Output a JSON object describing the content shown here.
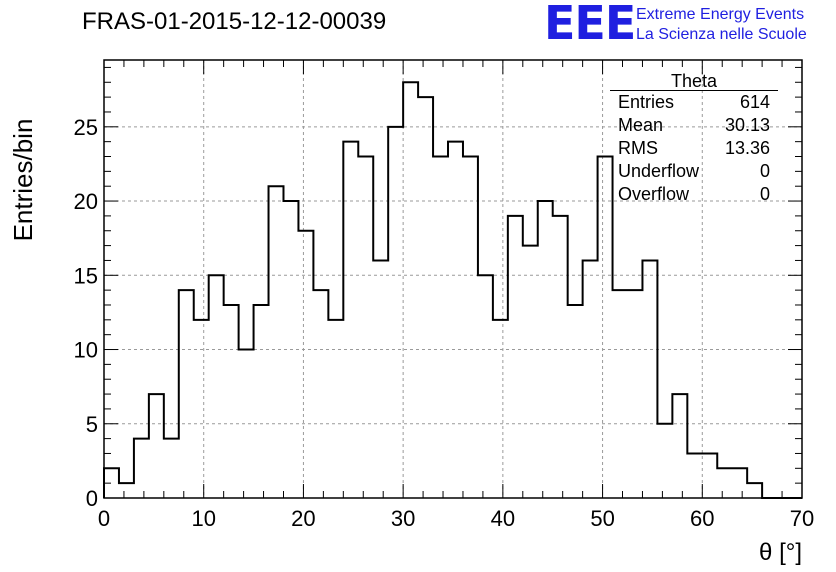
{
  "header": {
    "run_title": "FRAS-01-2015-12-12-00039",
    "logo_text": "EEE",
    "logo_line1": "Extreme Energy Events",
    "logo_line2": "La Scienza nelle Scuole"
  },
  "stats": {
    "title": "Theta",
    "rows": [
      {
        "label": "Entries",
        "value": "614"
      },
      {
        "label": "Mean",
        "value": "30.13"
      },
      {
        "label": "RMS",
        "value": "13.36"
      },
      {
        "label": "Underflow",
        "value": "0"
      },
      {
        "label": "Overflow",
        "value": "0"
      }
    ]
  },
  "chart_data": {
    "type": "histogram",
    "title": "FRAS-01-2015-12-12-00039",
    "xlabel": "θ [°]",
    "ylabel": "Entries/bin",
    "xlim": [
      0,
      70
    ],
    "ylim": [
      0,
      29.5
    ],
    "bin_width": 1.5,
    "x_ticks": [
      0,
      10,
      20,
      30,
      40,
      50,
      60,
      70
    ],
    "y_ticks": [
      0,
      5,
      10,
      15,
      20,
      25
    ],
    "grid": true,
    "values": [
      2,
      1,
      4,
      7,
      4,
      14,
      12,
      15,
      13,
      10,
      13,
      21,
      20,
      18,
      14,
      12,
      24,
      23,
      16,
      25,
      28,
      27,
      23,
      24,
      23,
      15,
      12,
      19,
      17,
      20,
      19,
      13,
      16,
      23,
      14,
      14,
      16,
      5,
      7,
      3,
      3,
      2,
      2,
      1,
      0,
      0,
      0
    ]
  }
}
